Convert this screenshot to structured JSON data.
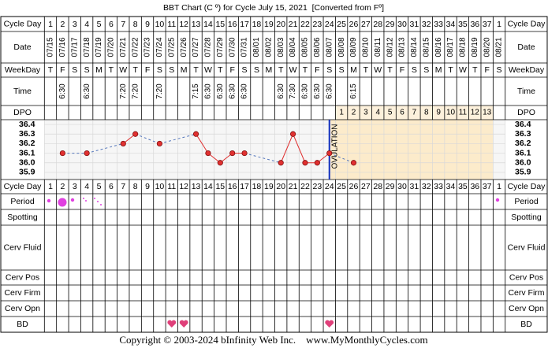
{
  "title": "BBT Chart (C º) for Cycle July 15, 2021  [Converted from Fº]",
  "row_labels": {
    "cycle_day": "Cycle Day",
    "date": "Date",
    "weekday": "WeekDay",
    "time": "Time",
    "dpo": "DPO",
    "period": "Period",
    "spotting": "Spotting",
    "cerv_fluid": "Cerv Fluid",
    "cerv_pos": "Cerv Pos",
    "cerv_firm": "Cerv Firm",
    "cerv_opn": "Cerv Opn",
    "bd": "BD"
  },
  "footer": "Copyright © 2003-2024 bInfinity Web Inc.    www.MyMonthlyCycles.com",
  "chart_data": {
    "type": "line",
    "cycle_days": [
      1,
      2,
      3,
      4,
      5,
      6,
      7,
      8,
      9,
      10,
      11,
      12,
      13,
      14,
      15,
      16,
      17,
      18,
      19,
      20,
      21,
      22,
      23,
      24,
      25,
      26,
      27,
      28,
      29,
      30,
      31,
      32,
      33,
      34,
      35,
      36,
      37,
      1
    ],
    "categories": [
      "07/15",
      "07/16",
      "07/17",
      "07/18",
      "07/19",
      "07/20",
      "07/21",
      "07/22",
      "07/23",
      "07/24",
      "07/25",
      "07/26",
      "07/27",
      "07/28",
      "07/29",
      "07/30",
      "07/31",
      "08/01",
      "08/02",
      "08/03",
      "08/04",
      "08/05",
      "08/06",
      "08/07",
      "08/08",
      "08/09",
      "08/10",
      "08/11",
      "08/12",
      "08/13",
      "08/14",
      "08/15",
      "08/16",
      "08/17",
      "08/18",
      "08/19",
      "08/20",
      "08/21"
    ],
    "weekdays": [
      "T",
      "F",
      "S",
      "S",
      "M",
      "T",
      "W",
      "T",
      "F",
      "S",
      "S",
      "M",
      "T",
      "W",
      "T",
      "F",
      "S",
      "S",
      "M",
      "T",
      "W",
      "T",
      "F",
      "S",
      "S",
      "M",
      "T",
      "W",
      "T",
      "F",
      "S",
      "S",
      "M",
      "T",
      "W",
      "T",
      "F",
      "S"
    ],
    "times": [
      null,
      "6:30",
      null,
      "6:30",
      null,
      null,
      "7:20",
      "7:20",
      null,
      "7:20",
      null,
      null,
      "7:15",
      "6:30",
      "6:30",
      "6:30",
      "6:30",
      null,
      null,
      "6:30",
      "7:30",
      "6:30",
      "6:30",
      "6:30",
      null,
      "6:15",
      null,
      null,
      null,
      null,
      null,
      null,
      null,
      null,
      null,
      null,
      null,
      null
    ],
    "dpo": [
      null,
      null,
      null,
      null,
      null,
      null,
      null,
      null,
      null,
      null,
      null,
      null,
      null,
      null,
      null,
      null,
      null,
      null,
      null,
      null,
      null,
      null,
      null,
      null,
      1,
      2,
      3,
      4,
      5,
      6,
      7,
      8,
      9,
      10,
      11,
      12,
      13,
      null
    ],
    "values": [
      null,
      36.1,
      null,
      36.1,
      null,
      null,
      36.2,
      36.3,
      null,
      36.2,
      null,
      null,
      36.3,
      36.1,
      36.0,
      36.1,
      36.1,
      null,
      null,
      36.0,
      36.3,
      36.0,
      36.0,
      36.1,
      null,
      36.0,
      null,
      null,
      null,
      null,
      null,
      null,
      null,
      null,
      null,
      null,
      null,
      null
    ],
    "color": "#e03030",
    "ovulation_label": "OVULATION",
    "ylim": [
      35.85,
      36.45
    ],
    "yticks": [
      36.4,
      36.3,
      36.2,
      36.1,
      {
        "value": 36.0,
        "label": "36.0"
      },
      35.9
    ]
  }
}
